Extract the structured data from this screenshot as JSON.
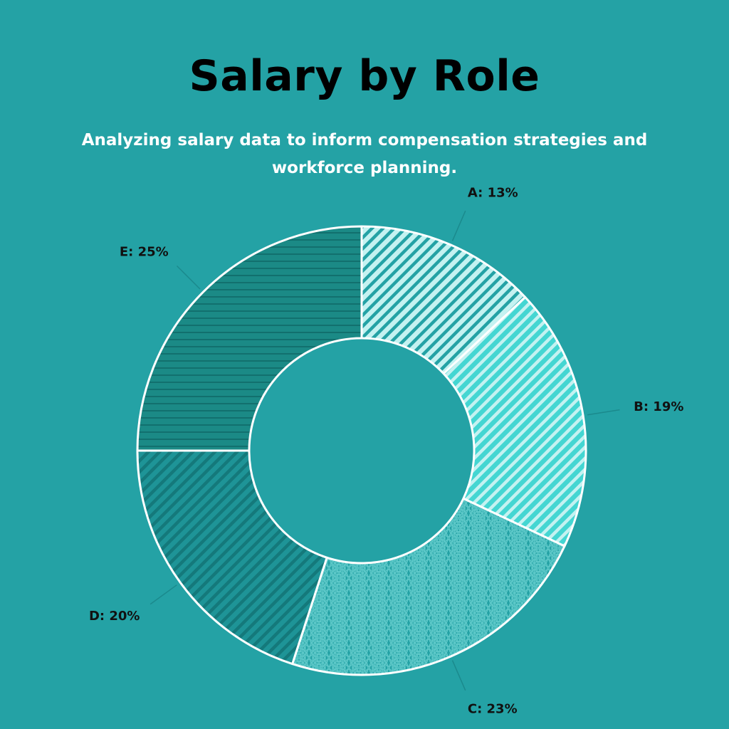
{
  "title": "Salary by Role",
  "subtitle": "Analyzing salary data to inform compensation strategies and workforce planning.",
  "colors": {
    "background": "#24a2a5",
    "slice_border": "#ffffff",
    "leader_line": "#1b8a8d"
  },
  "chart_data": {
    "type": "pie",
    "style": "donut",
    "categories": [
      "A",
      "B",
      "C",
      "D",
      "E"
    ],
    "values": [
      13,
      19,
      23,
      20,
      25
    ],
    "labels": [
      "A: 13%",
      "B: 19%",
      "C: 23%",
      "D: 20%",
      "E: 25%"
    ],
    "fills": [
      {
        "base": "#c4f2f1",
        "pattern": "diagonal-stripes",
        "pattern_color": "#24a2a5"
      },
      {
        "base": "#44d6d2",
        "pattern": "diagonal-stripes",
        "pattern_color": "#c4f2f1"
      },
      {
        "base": "#24a2a5",
        "pattern": "scales",
        "pattern_color": "#5ec9c9"
      },
      {
        "base": "#1e9497",
        "pattern": "diagonal-stripes",
        "pattern_color": "#14797b"
      },
      {
        "base": "#1b8a86",
        "pattern": "horizontal-stripes",
        "pattern_color": "#12706e"
      }
    ]
  }
}
